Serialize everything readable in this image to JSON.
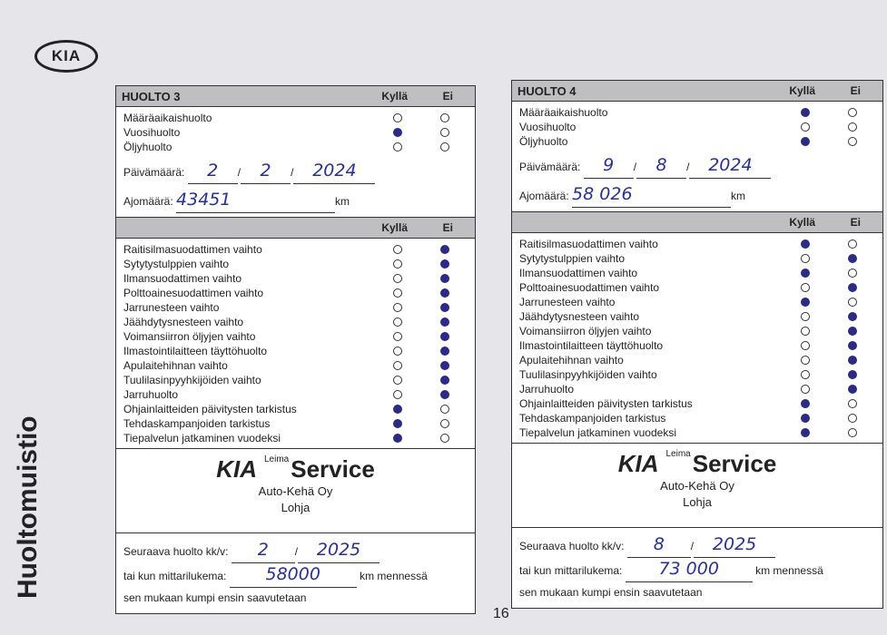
{
  "brand": "KIA",
  "side_title": "Huoltomuistio",
  "page_number": "16",
  "colors": {
    "ink": "#2630a0",
    "header": "#bfbfc2"
  },
  "cards": [
    {
      "id": "c3",
      "title": "HUOLTO 3",
      "yes": "Kyllä",
      "no": "Ei",
      "types": [
        {
          "label": "Määräaikaishuolto",
          "mark": "none"
        },
        {
          "label": "Vuosihuolto",
          "mark": "yes"
        },
        {
          "label": "Öljyhuolto",
          "mark": "none"
        }
      ],
      "date_label": "Päivämäärä:",
      "date": [
        "2",
        "2",
        "2024"
      ],
      "km_label": "Ajomäärä:",
      "km": "43451",
      "km_unit": "km",
      "items": [
        {
          "label": "Raitisilmasuodattimen vaihto",
          "mark": "no"
        },
        {
          "label": "Sytytystulppien vaihto",
          "mark": "no"
        },
        {
          "label": "Ilmansuodattimen vaihto",
          "mark": "no"
        },
        {
          "label": "Polttoainesuodattimen vaihto",
          "mark": "no"
        },
        {
          "label": "Jarrunesteen vaihto",
          "mark": "no"
        },
        {
          "label": "Jäähdytysnesteen vaihto",
          "mark": "no"
        },
        {
          "label": "Voimansiirron öljyjen vaihto",
          "mark": "no"
        },
        {
          "label": "Ilmastointilaitteen täyttöhuolto",
          "mark": "no"
        },
        {
          "label": "Apulaitehihnan vaihto",
          "mark": "no"
        },
        {
          "label": "Tuulilasinpyyhkijöiden vaihto",
          "mark": "no"
        },
        {
          "label": "Jarruhuolto",
          "mark": "no"
        },
        {
          "label": "Ohjainlaitteiden päivitysten tarkistus",
          "mark": "yes"
        },
        {
          "label": "Tehdaskampanjoiden tarkistus",
          "mark": "yes"
        },
        {
          "label": "Tiepalvelun jatkaminen vuodeksi",
          "mark": "yes"
        }
      ],
      "stamp": {
        "leima": "Leima",
        "service": "Service",
        "kia": "KIA",
        "dealer": "Auto-Kehä Oy",
        "city": "Lohja"
      },
      "next_label": "Seuraava huolto kk/v:",
      "next_date": [
        "2",
        "2025"
      ],
      "odo_label": "tai kun mittarilukema:",
      "odo": "58000",
      "odo_suffix": "km mennessä",
      "footer": "sen mukaan kumpi ensin saavutetaan"
    },
    {
      "id": "c4",
      "title": "HUOLTO 4",
      "yes": "Kyllä",
      "no": "Ei",
      "types": [
        {
          "label": "Määräaikaishuolto",
          "mark": "yes"
        },
        {
          "label": "Vuosihuolto",
          "mark": "none"
        },
        {
          "label": "Öljyhuolto",
          "mark": "yes"
        }
      ],
      "date_label": "Päivämäärä:",
      "date": [
        "9",
        "8",
        "2024"
      ],
      "km_label": "Ajomäärä:",
      "km": "58 026",
      "km_unit": "km",
      "items": [
        {
          "label": "Raitisilmasuodattimen vaihto",
          "mark": "yes"
        },
        {
          "label": "Sytytystulppien vaihto",
          "mark": "no"
        },
        {
          "label": "Ilmansuodattimen vaihto",
          "mark": "yes"
        },
        {
          "label": "Polttoainesuodattimen vaihto",
          "mark": "no"
        },
        {
          "label": "Jarrunesteen vaihto",
          "mark": "yes"
        },
        {
          "label": "Jäähdytysnesteen vaihto",
          "mark": "no"
        },
        {
          "label": "Voimansiirron öljyjen vaihto",
          "mark": "no"
        },
        {
          "label": "Ilmastointilaitteen täyttöhuolto",
          "mark": "no"
        },
        {
          "label": "Apulaitehihnan vaihto",
          "mark": "no"
        },
        {
          "label": "Tuulilasinpyyhkijöiden vaihto",
          "mark": "no"
        },
        {
          "label": "Jarruhuolto",
          "mark": "no"
        },
        {
          "label": "Ohjainlaitteiden päivitysten tarkistus",
          "mark": "yes"
        },
        {
          "label": "Tehdaskampanjoiden tarkistus",
          "mark": "yes"
        },
        {
          "label": "Tiepalvelun jatkaminen vuodeksi",
          "mark": "yes"
        }
      ],
      "stamp": {
        "leima": "Leima",
        "service": "Service",
        "kia": "KIA",
        "dealer": "Auto-Kehä Oy",
        "city": "Lohja"
      },
      "next_label": "Seuraava huolto kk/v:",
      "next_date": [
        "8",
        "2025"
      ],
      "odo_label": "tai kun mittarilukema:",
      "odo": "73 000",
      "odo_suffix": "km mennessä",
      "footer": "sen mukaan kumpi ensin saavutetaan"
    }
  ]
}
